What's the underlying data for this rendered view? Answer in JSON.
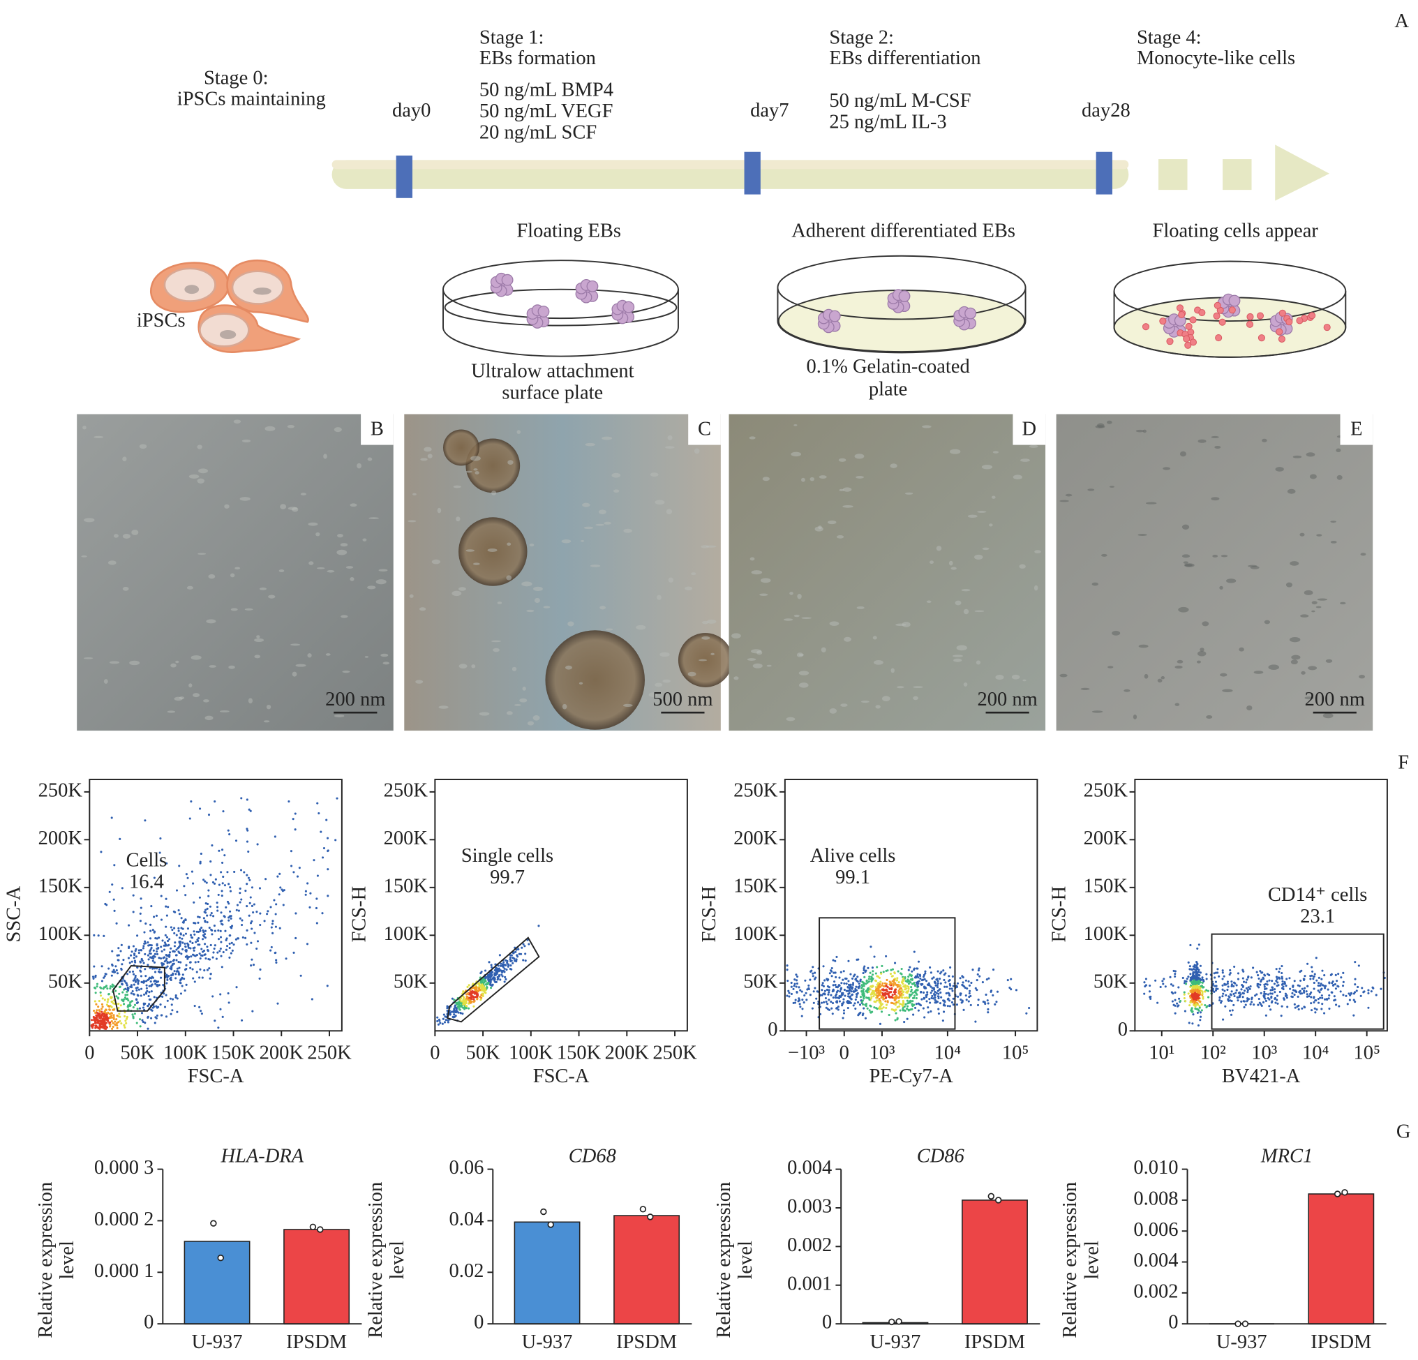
{
  "panels": [
    "A",
    "F",
    "G"
  ],
  "timeline": {
    "stages": [
      {
        "title": "Stage 0:",
        "subtitle": "iPSCs maintaining"
      },
      {
        "title": "Stage 1:",
        "subtitle": "EBs formation",
        "media": [
          "50 ng/mL BMP4",
          "50 ng/mL VEGF",
          "20 ng/mL SCF"
        ]
      },
      {
        "title": "Stage 2:",
        "subtitle": "EBs differentiation",
        "media": [
          "50 ng/mL M-CSF",
          "25 ng/mL IL-3"
        ]
      },
      {
        "title": "Stage 4:",
        "subtitle": "Monocyte-like cells"
      }
    ],
    "days": [
      "day0",
      "day7",
      "day28"
    ]
  },
  "cultures": [
    {
      "label": "iPSCs"
    },
    {
      "title": "Floating EBs",
      "plate": [
        "Ultralow attachment",
        "surface plate"
      ]
    },
    {
      "title": "Adherent differentiated EBs",
      "plate": [
        "0.1% Gelatin-coated",
        "plate"
      ]
    },
    {
      "title": "Floating cells appear"
    }
  ],
  "micrographs": [
    {
      "label": "B",
      "scale_bar": "200 nm"
    },
    {
      "label": "C",
      "scale_bar": "500 nm"
    },
    {
      "label": "D",
      "scale_bar": "200 nm"
    },
    {
      "label": "E",
      "scale_bar": "200 nm"
    }
  ],
  "chart_data": [
    {
      "type": "flow",
      "xlabel": "FSC-A",
      "ylabel": "SSC-A",
      "xscale": "linear",
      "xlim": [
        0,
        263000
      ],
      "ylim": [
        0,
        263000
      ],
      "xticks": [
        0,
        {
          "value": 50000,
          "label": "50K"
        },
        {
          "value": 100000,
          "label": "100K"
        },
        {
          "value": 150000,
          "label": "150K"
        },
        {
          "value": 200000,
          "label": "200K"
        },
        {
          "value": 250000,
          "label": "250K"
        }
      ],
      "yticks": [
        {
          "value": 50000,
          "label": "50K"
        },
        {
          "value": 100000,
          "label": "100K"
        },
        {
          "value": 150000,
          "label": "150K"
        },
        {
          "value": 200000,
          "label": "200K"
        },
        {
          "value": 250000,
          "label": "250K"
        }
      ],
      "gate": {
        "name": "Cells",
        "value": 16.4
      }
    },
    {
      "type": "flow",
      "xlabel": "FSC-A",
      "ylabel": "FCS-H",
      "xscale": "linear",
      "xlim": [
        0,
        263000
      ],
      "ylim": [
        0,
        263000
      ],
      "xticks": [
        0,
        {
          "value": 50000,
          "label": "50K"
        },
        {
          "value": 100000,
          "label": "100K"
        },
        {
          "value": 150000,
          "label": "150K"
        },
        {
          "value": 200000,
          "label": "200K"
        },
        {
          "value": 250000,
          "label": "250K"
        }
      ],
      "yticks": [
        {
          "value": 50000,
          "label": "50K"
        },
        {
          "value": 100000,
          "label": "100K"
        },
        {
          "value": 150000,
          "label": "150K"
        },
        {
          "value": 200000,
          "label": "200K"
        },
        {
          "value": 250000,
          "label": "250K"
        }
      ],
      "gate": {
        "name": "Single cells",
        "value": 99.7
      }
    },
    {
      "type": "flow",
      "xlabel": "PE-Cy7-A",
      "ylabel": "FCS-H",
      "xscale": "biexponential",
      "xlim": [
        -2200,
        210000
      ],
      "ylim": [
        0,
        263000
      ],
      "xticks": [
        {
          "value": -1000,
          "label": "−10³"
        },
        0,
        {
          "value": 1000,
          "label": "10³"
        },
        {
          "value": 10000,
          "label": "10⁴"
        },
        {
          "value": 100000,
          "label": "10⁵"
        }
      ],
      "yticks": [
        0,
        {
          "value": 50000,
          "label": "50K"
        },
        {
          "value": 100000,
          "label": "100K"
        },
        {
          "value": 150000,
          "label": "150K"
        },
        {
          "value": 200000,
          "label": "200K"
        },
        {
          "value": 250000,
          "label": "250K"
        }
      ],
      "gate": {
        "name": "Alive cells",
        "value": 99.1
      }
    },
    {
      "type": "flow",
      "xlabel": "BV421-A",
      "ylabel": "FCS-H",
      "xscale": "log",
      "xlim": [
        3,
        250000
      ],
      "ylim": [
        0,
        263000
      ],
      "xticks": [
        {
          "value": 10,
          "label": "10¹"
        },
        {
          "value": 100,
          "label": "10²"
        },
        {
          "value": 1000,
          "label": "10³"
        },
        {
          "value": 10000,
          "label": "10⁴"
        },
        {
          "value": 100000,
          "label": "10⁵"
        }
      ],
      "yticks": [
        0,
        {
          "value": 50000,
          "label": "50K"
        },
        {
          "value": 100000,
          "label": "100K"
        },
        {
          "value": 150000,
          "label": "150K"
        },
        {
          "value": 200000,
          "label": "200K"
        },
        {
          "value": 250000,
          "label": "250K"
        }
      ],
      "gate": {
        "name": "CD14⁺ cells",
        "value": 23.1
      }
    },
    {
      "type": "bar",
      "title": "HLA-DRA",
      "ylabel": [
        "Relative expression",
        "level"
      ],
      "categories": [
        "U-937",
        "IPSDM"
      ],
      "values": [
        0.00016,
        0.000183
      ],
      "colors": [
        "#4a8fd4",
        "#ec4547"
      ],
      "replicates": [
        [
          0.000195,
          0.000128
        ],
        [
          0.000188,
          0.000183
        ]
      ],
      "ylim": [
        0,
        0.0003
      ],
      "yticks": [
        0,
        {
          "value": 0.0001,
          "label": "0.000 1"
        },
        {
          "value": 0.0002,
          "label": "0.000 2"
        },
        {
          "value": 0.0003,
          "label": "0.000 3"
        }
      ]
    },
    {
      "type": "bar",
      "title": "CD68",
      "ylabel": [
        "Relative expression",
        "level"
      ],
      "categories": [
        "U-937",
        "IPSDM"
      ],
      "values": [
        0.0395,
        0.042
      ],
      "colors": [
        "#4a8fd4",
        "#ec4547"
      ],
      "replicates": [
        [
          0.0435,
          0.0385
        ],
        [
          0.0445,
          0.0415
        ]
      ],
      "ylim": [
        0,
        0.06
      ],
      "yticks": [
        0,
        0.02,
        0.04,
        0.06
      ]
    },
    {
      "type": "bar",
      "title": "CD86",
      "ylabel": [
        "Relative expression",
        "level"
      ],
      "categories": [
        "U-937",
        "IPSDM"
      ],
      "values": [
        3e-05,
        0.0032
      ],
      "colors": [
        "#4a8fd4",
        "#ec4547"
      ],
      "replicates": [
        [
          5e-05,
          6e-05
        ],
        [
          0.0033,
          0.0032
        ]
      ],
      "ylim": [
        0,
        0.004
      ],
      "yticks": [
        0,
        0.001,
        0.002,
        0.003,
        0.004
      ]
    },
    {
      "type": "bar",
      "title": "MRC1",
      "ylabel": [
        "Relative expression",
        "level"
      ],
      "categories": [
        "U-937",
        "IPSDM"
      ],
      "values": [
        0,
        0.0084
      ],
      "colors": [
        "#4a8fd4",
        "#ec4547"
      ],
      "replicates": [
        [
          0,
          0
        ],
        [
          0.0084,
          0.0085
        ]
      ],
      "ylim": [
        0,
        0.01
      ],
      "yticks": [
        0,
        0.002,
        0.004,
        0.006,
        0.008,
        {
          "value": 0.01,
          "label": "0.010"
        }
      ]
    }
  ]
}
